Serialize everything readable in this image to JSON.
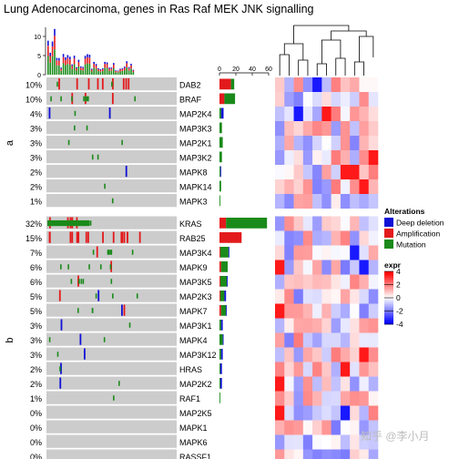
{
  "title": "Lung Adenocarcinoma, genes in Ras Raf MEK JNK signalling",
  "colors": {
    "deletion": "#1010d6",
    "amplification": "#e31a1c",
    "mutation": "#1a8a1a",
    "background": "#cccccc",
    "expr_high": "#ff0000",
    "expr_mid": "#ffffff",
    "expr_low": "#0000ff"
  },
  "chart_data": {
    "type": "heatmap",
    "top_barplot_axis": {
      "ticks": [
        "0",
        "5",
        "10"
      ],
      "ylim": [
        0,
        13
      ]
    },
    "right_barplot_axis": {
      "ticks": [
        "0",
        "20",
        "40",
        "60"
      ],
      "xlim": [
        0,
        60
      ]
    },
    "groups": [
      {
        "label": "a",
        "genes": [
          {
            "gene": "DAB2",
            "pct": "10%",
            "amp": 14,
            "mut": 4,
            "del": 0
          },
          {
            "gene": "BRAF",
            "pct": "10%",
            "amp": 6,
            "mut": 13,
            "del": 0
          },
          {
            "gene": "MAP2K4",
            "pct": "4%",
            "amp": 0,
            "mut": 2,
            "del": 3
          },
          {
            "gene": "MAP3K3",
            "pct": "3%",
            "amp": 0,
            "mut": 3,
            "del": 0
          },
          {
            "gene": "MAP2K1",
            "pct": "3%",
            "amp": 0,
            "mut": 4,
            "del": 0
          },
          {
            "gene": "MAP3K2",
            "pct": "3%",
            "amp": 0,
            "mut": 3,
            "del": 0
          },
          {
            "gene": "MAPK8",
            "pct": "2%",
            "amp": 0,
            "mut": 1,
            "del": 1
          },
          {
            "gene": "MAPK14",
            "pct": "2%",
            "amp": 0,
            "mut": 2,
            "del": 0
          },
          {
            "gene": "MAPK3",
            "pct": "1%",
            "amp": 0,
            "mut": 1,
            "del": 0
          }
        ]
      },
      {
        "label": "b",
        "genes": [
          {
            "gene": "KRAS",
            "pct": "32%",
            "amp": 8,
            "mut": 50,
            "del": 0
          },
          {
            "gene": "RAB25",
            "pct": "15%",
            "amp": 27,
            "mut": 0,
            "del": 0
          },
          {
            "gene": "MAP3K4",
            "pct": "7%",
            "amp": 1,
            "mut": 10,
            "del": 1
          },
          {
            "gene": "MAPK9",
            "pct": "6%",
            "amp": 2,
            "mut": 8,
            "del": 0
          },
          {
            "gene": "MAP3K5",
            "pct": "6%",
            "amp": 1,
            "mut": 8,
            "del": 1
          },
          {
            "gene": "MAP2K3",
            "pct": "5%",
            "amp": 1,
            "mut": 5,
            "del": 2
          },
          {
            "gene": "MAPK7",
            "pct": "5%",
            "amp": 2,
            "mut": 6,
            "del": 1
          },
          {
            "gene": "MAP3K1",
            "pct": "3%",
            "amp": 0,
            "mut": 2,
            "del": 2
          },
          {
            "gene": "MAPK4",
            "pct": "3%",
            "amp": 0,
            "mut": 4,
            "del": 1
          },
          {
            "gene": "MAP3K12",
            "pct": "3%",
            "amp": 0,
            "mut": 2,
            "del": 2
          },
          {
            "gene": "HRAS",
            "pct": "2%",
            "amp": 0,
            "mut": 1,
            "del": 2
          },
          {
            "gene": "MAP2K2",
            "pct": "2%",
            "amp": 0,
            "mut": 1,
            "del": 2
          },
          {
            "gene": "RAF1",
            "pct": "1%",
            "amp": 0,
            "mut": 1,
            "del": 0
          },
          {
            "gene": "MAP2K5",
            "pct": "0%",
            "amp": 0,
            "mut": 0,
            "del": 0
          },
          {
            "gene": "MAPK1",
            "pct": "0%",
            "amp": 0,
            "mut": 0,
            "del": 0
          },
          {
            "gene": "MAPK6",
            "pct": "0%",
            "amp": 0,
            "mut": 0,
            "del": 0
          },
          {
            "gene": "RASSF1",
            "pct": "0%",
            "amp": 0,
            "mut": 0,
            "del": 0
          }
        ]
      }
    ],
    "legend": {
      "alterations_title": "Alterations",
      "alterations": [
        {
          "name": "Deep deletion",
          "key": "deletion"
        },
        {
          "name": "Amplification",
          "key": "amplification"
        },
        {
          "name": "Mutation",
          "key": "mutation"
        }
      ],
      "expr_title": "expr",
      "expr_ticks": [
        "4",
        "2",
        "0",
        "-2",
        "-4"
      ],
      "expr_range": [
        -4,
        4
      ]
    },
    "expression_matrix_columns": 11
  },
  "watermark": "知乎 @李小月"
}
